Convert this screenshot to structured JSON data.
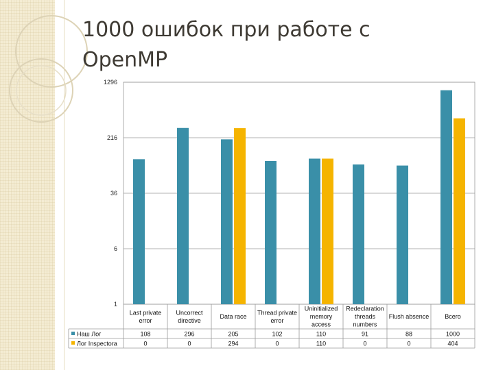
{
  "slide": {
    "title_line1": "1000 ошибок при работе с",
    "title_line2": "OpenMP"
  },
  "colors": {
    "series1": "#3a8fa8",
    "series2": "#f5b400"
  },
  "chart_data": {
    "type": "bar",
    "yscale": "log",
    "ylim": [
      1,
      1296
    ],
    "yticks": [
      1,
      6,
      36,
      216,
      1296
    ],
    "grid": true,
    "legend": "table-left",
    "categories": [
      [
        "Last private",
        "error"
      ],
      [
        "Uncorrect",
        "directive"
      ],
      [
        "Data race"
      ],
      [
        "Thread private",
        "error"
      ],
      [
        "Uninitialized",
        "memory",
        "access"
      ],
      [
        "Redeclaration",
        "threads",
        "numbers"
      ],
      [
        "Flush absence"
      ],
      [
        "Всего"
      ]
    ],
    "series": [
      {
        "name": "Наш Лог",
        "values": [
          108,
          296,
          205,
          102,
          110,
          91,
          88,
          1000
        ]
      },
      {
        "name": "Лог Inspectora",
        "values": [
          0,
          0,
          294,
          0,
          110,
          0,
          0,
          404
        ]
      }
    ]
  }
}
